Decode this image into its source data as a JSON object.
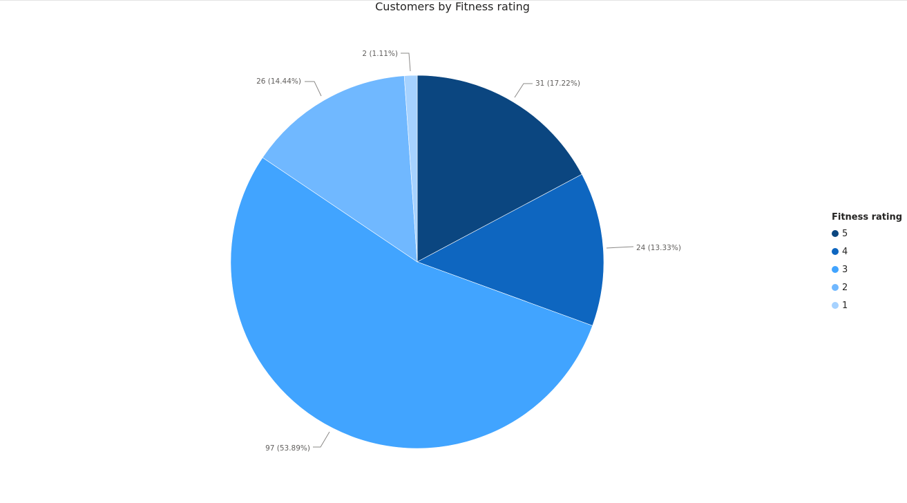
{
  "chart_data": {
    "type": "pie",
    "title": "Customers by Fitness rating",
    "legend_title": "Fitness rating",
    "legend_position": "right",
    "slices": [
      {
        "label": "5",
        "value": 31,
        "display": "31 (17.22%)",
        "color": "#0b4680"
      },
      {
        "label": "4",
        "value": 24,
        "display": "24 (13.33%)",
        "color": "#0e66c0"
      },
      {
        "label": "3",
        "value": 97,
        "display": "97 (53.89%)",
        "color": "#41a4ff"
      },
      {
        "label": "2",
        "value": 26,
        "display": "26 (14.44%)",
        "color": "#70b8ff"
      },
      {
        "label": "1",
        "value": 2,
        "display": "2 (1.11%)",
        "color": "#a6d2ff"
      }
    ]
  }
}
